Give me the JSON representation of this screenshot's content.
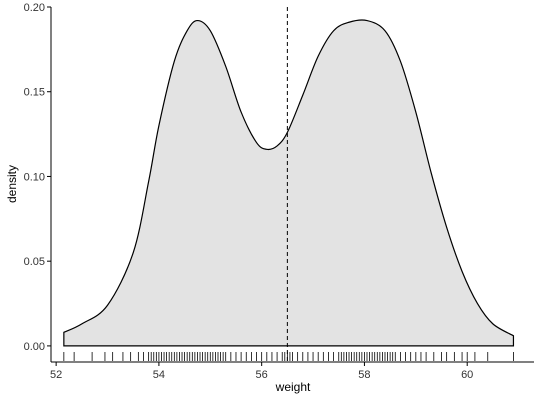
{
  "chart_data": {
    "type": "area",
    "xlabel": "weight",
    "ylabel": "density",
    "xlim": [
      51.9,
      61.3
    ],
    "ylim": [
      -0.0095,
      0.2
    ],
    "x_ticks": [
      52,
      54,
      56,
      58,
      60
    ],
    "y_ticks": [
      0.0,
      0.05,
      0.1,
      0.15,
      0.2
    ],
    "y_tick_labels": [
      "0.00",
      "0.05",
      "0.10",
      "0.15",
      "0.20"
    ],
    "grid": false,
    "legend": "none",
    "fill_color": "#e3e3e3",
    "line_color": "#000000",
    "density_curve": {
      "x": [
        52.15,
        52.5,
        53.0,
        53.5,
        53.8,
        54.0,
        54.3,
        54.55,
        54.75,
        55.0,
        55.3,
        55.6,
        55.9,
        56.1,
        56.3,
        56.5,
        56.8,
        57.1,
        57.4,
        57.7,
        58.05,
        58.4,
        58.7,
        59.0,
        59.3,
        59.6,
        59.9,
        60.2,
        60.5,
        60.9
      ],
      "y": [
        0.008,
        0.013,
        0.024,
        0.055,
        0.097,
        0.13,
        0.168,
        0.186,
        0.192,
        0.186,
        0.165,
        0.138,
        0.12,
        0.116,
        0.118,
        0.126,
        0.148,
        0.171,
        0.186,
        0.191,
        0.192,
        0.186,
        0.168,
        0.138,
        0.102,
        0.07,
        0.044,
        0.025,
        0.013,
        0.006
      ]
    },
    "vline": {
      "x": 56.5,
      "style": "dashed"
    },
    "rug": [
      52.15,
      52.35,
      52.7,
      52.95,
      53.1,
      53.3,
      53.45,
      53.6,
      53.7,
      53.8,
      53.85,
      53.9,
      53.95,
      54.0,
      54.05,
      54.1,
      54.15,
      54.2,
      54.25,
      54.3,
      54.35,
      54.4,
      54.45,
      54.5,
      54.55,
      54.6,
      54.65,
      54.7,
      54.75,
      54.8,
      54.85,
      54.9,
      54.95,
      55.0,
      55.05,
      55.1,
      55.15,
      55.2,
      55.25,
      55.3,
      55.4,
      55.5,
      55.6,
      55.7,
      55.8,
      55.9,
      56.0,
      56.1,
      56.2,
      56.3,
      56.4,
      56.45,
      56.5,
      56.55,
      56.6,
      56.7,
      56.8,
      56.9,
      57.0,
      57.1,
      57.2,
      57.3,
      57.4,
      57.5,
      57.55,
      57.6,
      57.65,
      57.7,
      57.75,
      57.8,
      57.85,
      57.9,
      57.95,
      58.0,
      58.05,
      58.1,
      58.15,
      58.2,
      58.25,
      58.3,
      58.35,
      58.4,
      58.45,
      58.5,
      58.55,
      58.6,
      58.7,
      58.8,
      58.9,
      59.0,
      59.1,
      59.2,
      59.35,
      59.5,
      59.6,
      59.75,
      59.9,
      60.0,
      60.15,
      60.4,
      60.9
    ]
  }
}
